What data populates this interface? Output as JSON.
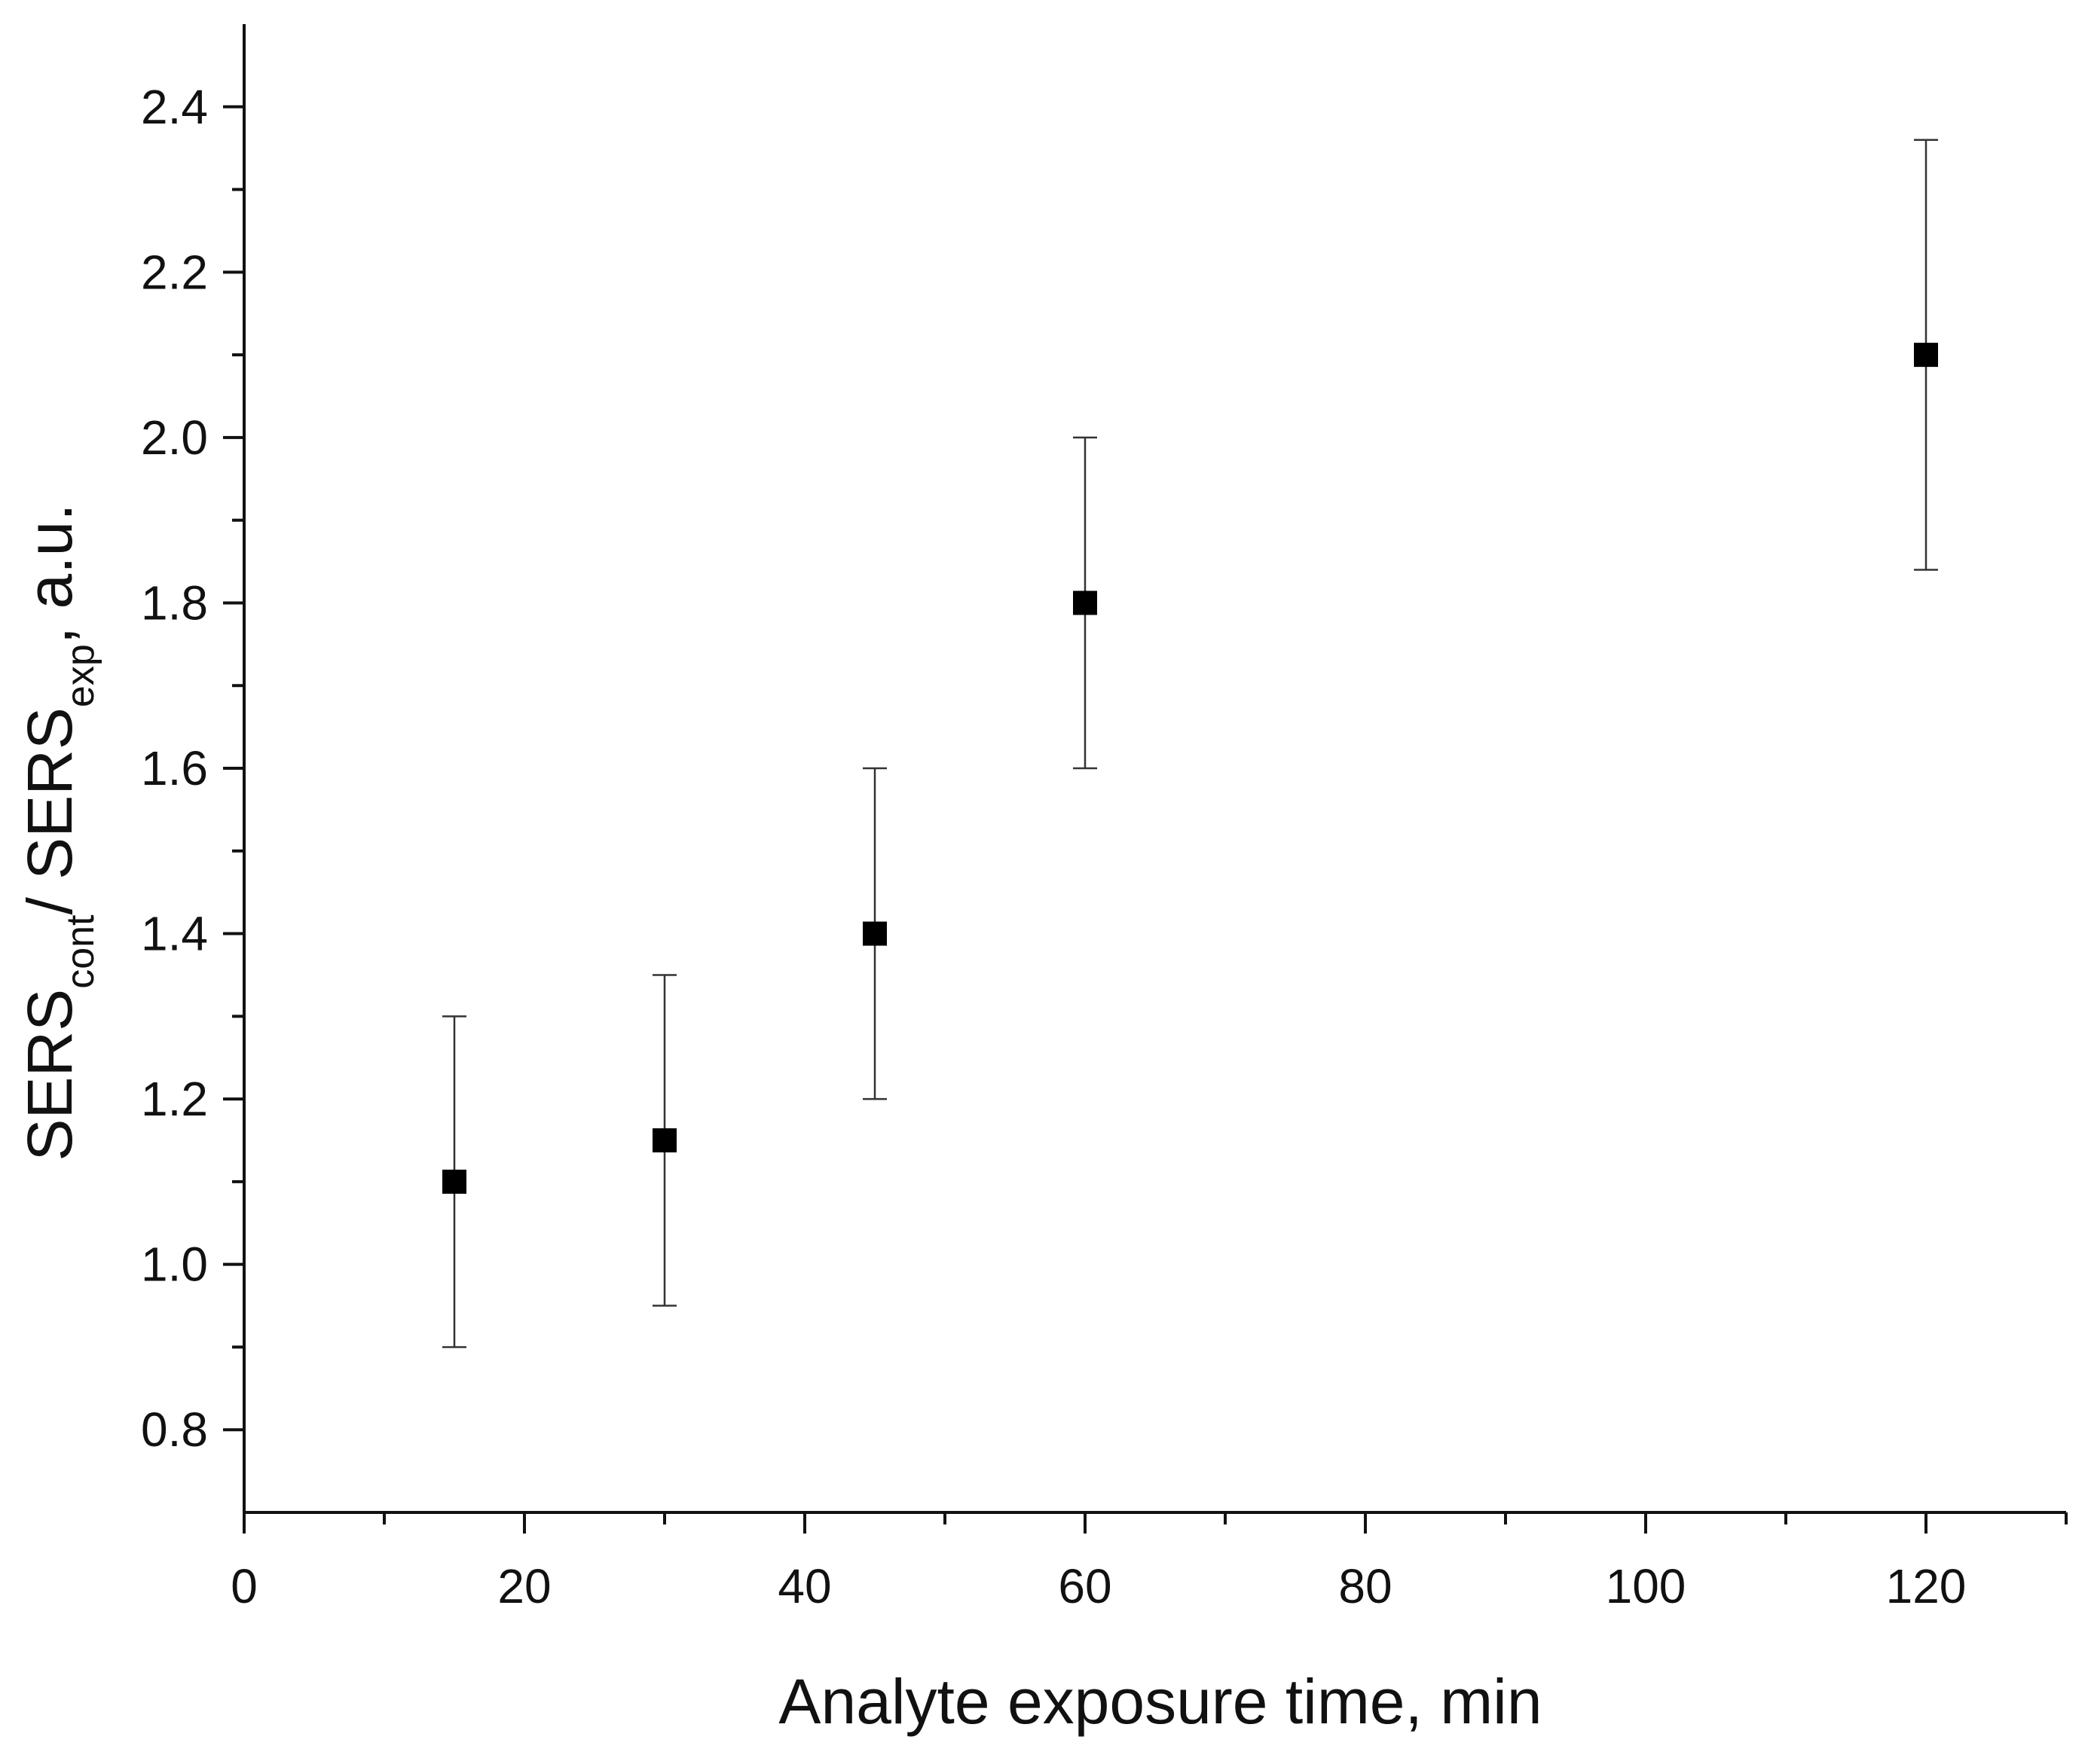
{
  "chart_data": {
    "type": "scatter",
    "title": "",
    "xlabel": "Analyte exposure time, min",
    "ylabel": {
      "parts": [
        {
          "text": "SERS",
          "sub": false
        },
        {
          "text": "cont",
          "sub": true
        },
        {
          "text": "/ SERS",
          "sub": false
        },
        {
          "text": "exp",
          "sub": true
        },
        {
          "text": ", a.u.",
          "sub": false
        }
      ]
    },
    "xlim": [
      0,
      130
    ],
    "ylim": [
      0.7,
      2.5
    ],
    "x_ticks": [
      0,
      20,
      40,
      60,
      80,
      100,
      120
    ],
    "x_tick_labels": [
      "0",
      "20",
      "40",
      "60",
      "80",
      "100",
      "120"
    ],
    "x_minor_ticks": [
      10,
      30,
      50,
      70,
      90,
      110,
      130
    ],
    "y_ticks": [
      0.8,
      1.0,
      1.2,
      1.4,
      1.6,
      1.8,
      2.0,
      2.2,
      2.4
    ],
    "y_tick_labels": [
      "0.8",
      "1.0",
      "1.2",
      "1.4",
      "1.6",
      "1.8",
      "2.0",
      "2.2",
      "2.4"
    ],
    "y_minor_ticks": [
      0.9,
      1.1,
      1.3,
      1.5,
      1.7,
      1.9,
      2.1,
      2.3
    ],
    "grid": false,
    "marker": "square",
    "colors": {
      "marker": "#000000",
      "error_bar": "#333333",
      "axis": "#111111"
    },
    "points": [
      {
        "x": 15,
        "y": 1.1,
        "err_low": 0.9,
        "err_high": 1.3
      },
      {
        "x": 30,
        "y": 1.15,
        "err_low": 0.95,
        "err_high": 1.35
      },
      {
        "x": 45,
        "y": 1.4,
        "err_low": 1.2,
        "err_high": 1.6
      },
      {
        "x": 60,
        "y": 1.8,
        "err_low": 1.6,
        "err_high": 2.0
      },
      {
        "x": 120,
        "y": 2.1,
        "err_low": 1.84,
        "err_high": 2.36
      }
    ]
  }
}
